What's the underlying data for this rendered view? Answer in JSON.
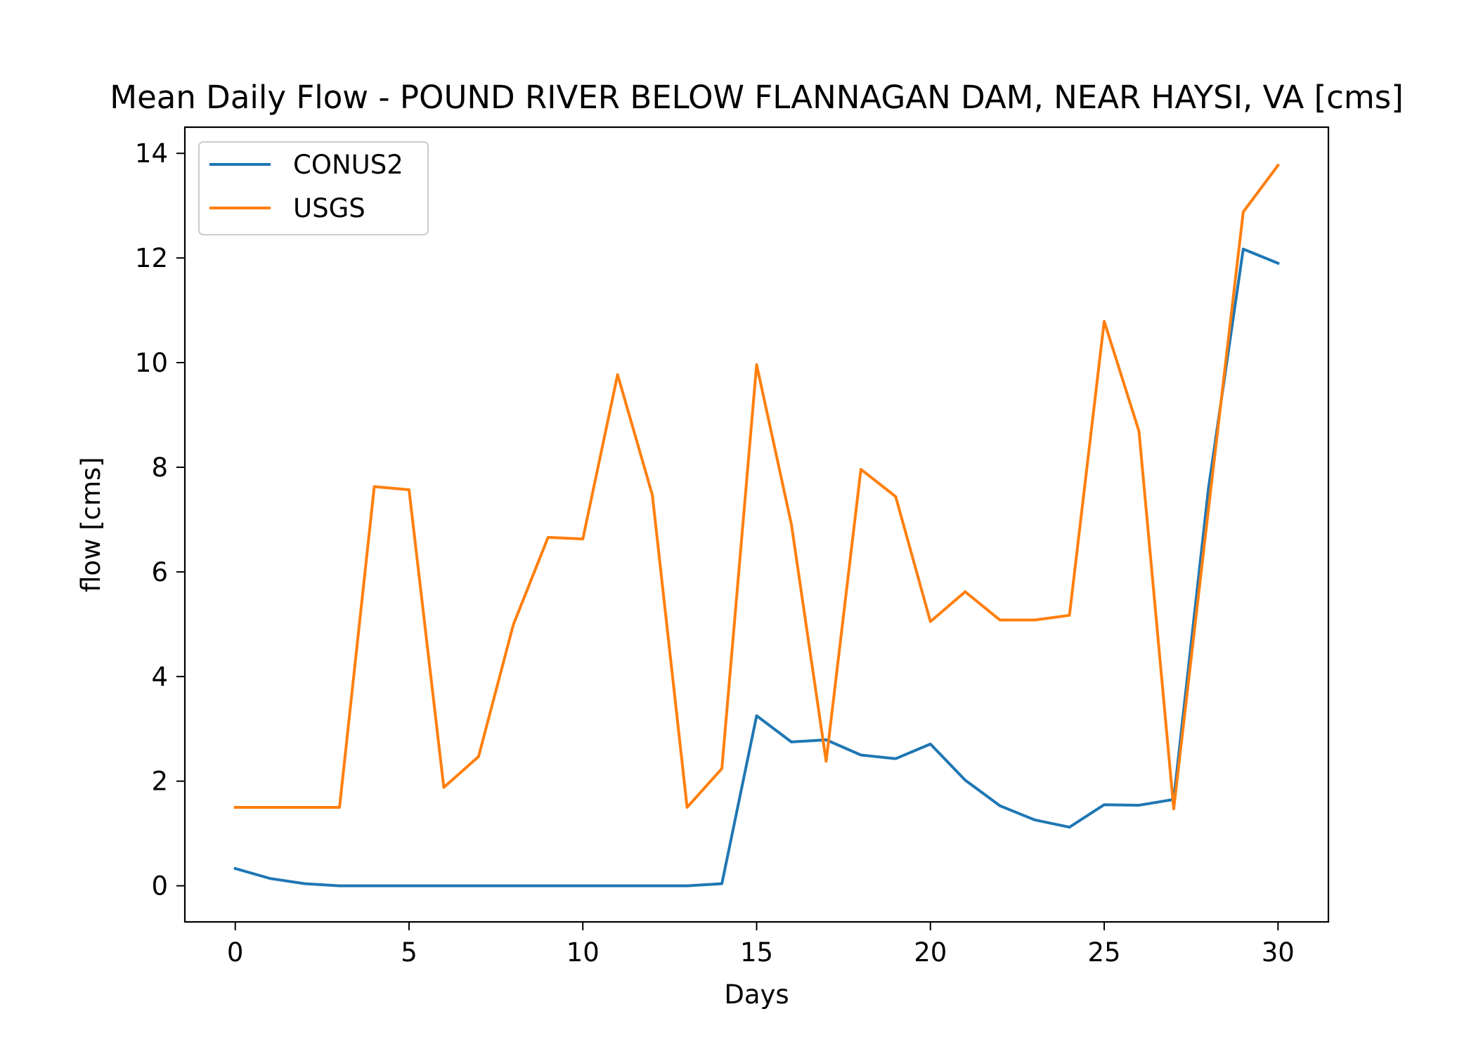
{
  "chart_data": {
    "type": "line",
    "title": "Mean Daily Flow - POUND RIVER BELOW FLANNAGAN DAM, NEAR HAYSI, VA [cms]",
    "xlabel": "Days",
    "ylabel": "flow [cms]",
    "xlim": [
      -1.45,
      31.45
    ],
    "ylim": [
      -0.69,
      14.5
    ],
    "xticks": [
      0,
      5,
      10,
      15,
      20,
      25,
      30
    ],
    "yticks": [
      0,
      2,
      4,
      6,
      8,
      10,
      12,
      14
    ],
    "grid": false,
    "legend_position": "top-left",
    "x": [
      0,
      1,
      2,
      3,
      4,
      5,
      6,
      7,
      8,
      9,
      10,
      11,
      12,
      13,
      14,
      15,
      16,
      17,
      18,
      19,
      20,
      21,
      22,
      23,
      24,
      25,
      26,
      27,
      28,
      29,
      30
    ],
    "series": [
      {
        "name": "CONUS2",
        "color": "#1f77b4",
        "values": [
          0.33,
          0.14,
          0.04,
          0.0,
          0.0,
          0.0,
          0.0,
          0.0,
          0.0,
          0.0,
          0.0,
          0.0,
          0.0,
          0.0,
          0.04,
          3.25,
          2.75,
          2.79,
          2.5,
          2.43,
          2.71,
          2.02,
          1.53,
          1.26,
          1.12,
          1.55,
          1.54,
          1.65,
          7.6,
          12.17,
          11.9
        ]
      },
      {
        "name": "USGS",
        "color": "#ff7f0e",
        "values": [
          1.5,
          1.5,
          1.5,
          1.5,
          7.63,
          7.57,
          1.88,
          2.47,
          4.99,
          6.66,
          6.63,
          9.77,
          7.47,
          1.5,
          2.24,
          9.96,
          6.91,
          2.38,
          7.96,
          7.44,
          5.05,
          5.62,
          5.08,
          5.08,
          5.17,
          10.79,
          8.69,
          1.47,
          7.2,
          12.88,
          13.77
        ]
      }
    ]
  }
}
